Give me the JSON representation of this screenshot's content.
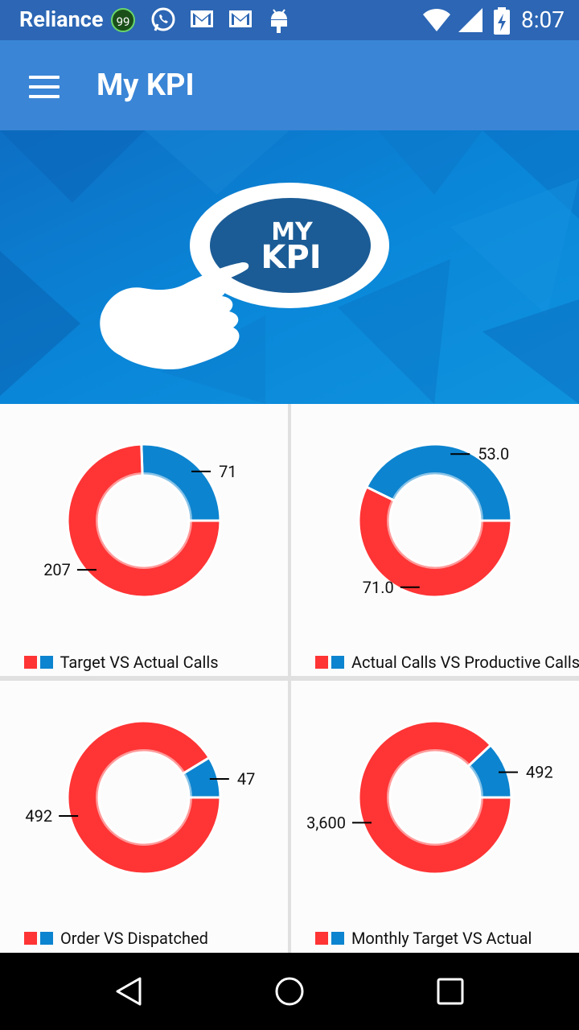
{
  "status_bar": {
    "carrier": "Reliance",
    "badge": "99",
    "icons": [
      "whatsapp-icon",
      "gmail-icon",
      "gmail-icon",
      "android-icon",
      "wifi-icon",
      "signal-icon",
      "battery-charging-icon"
    ],
    "time": "8:07"
  },
  "app_bar": {
    "title": "My KPI",
    "menu_icon": "hamburger-menu-icon"
  },
  "banner": {
    "line1": "MY",
    "line2": "KPI"
  },
  "colors": {
    "target": "#fe3435",
    "actual": "#0d84cf",
    "appbar": "#3a85d6",
    "statusbar": "#2c66b4"
  },
  "chart_data": [
    {
      "type": "pie",
      "title": "Target VS Actual Calls",
      "slices": [
        {
          "color": "#0d84cf",
          "value": 71,
          "label": "71"
        },
        {
          "color": "#fe3435",
          "value": 207,
          "label": "207"
        }
      ]
    },
    {
      "type": "pie",
      "title": "Actual Calls VS Productive Calls",
      "slices": [
        {
          "color": "#0d84cf",
          "value": 53.0,
          "label": "53.0"
        },
        {
          "color": "#fe3435",
          "value": 71.0,
          "label": "71.0"
        }
      ]
    },
    {
      "type": "pie",
      "title": "Order VS Dispatched",
      "slices": [
        {
          "color": "#0d84cf",
          "value": 47,
          "label": "47"
        },
        {
          "color": "#fe3435",
          "value": 492,
          "label": "492"
        }
      ]
    },
    {
      "type": "pie",
      "title": "Monthly Target VS Actual",
      "slices": [
        {
          "color": "#0d84cf",
          "value": 492,
          "label": "492"
        },
        {
          "color": "#fe3435",
          "value": 3600,
          "label": "3,600"
        }
      ]
    }
  ],
  "nav_bar": {
    "icons": [
      "back-icon",
      "home-icon",
      "recents-icon"
    ]
  }
}
